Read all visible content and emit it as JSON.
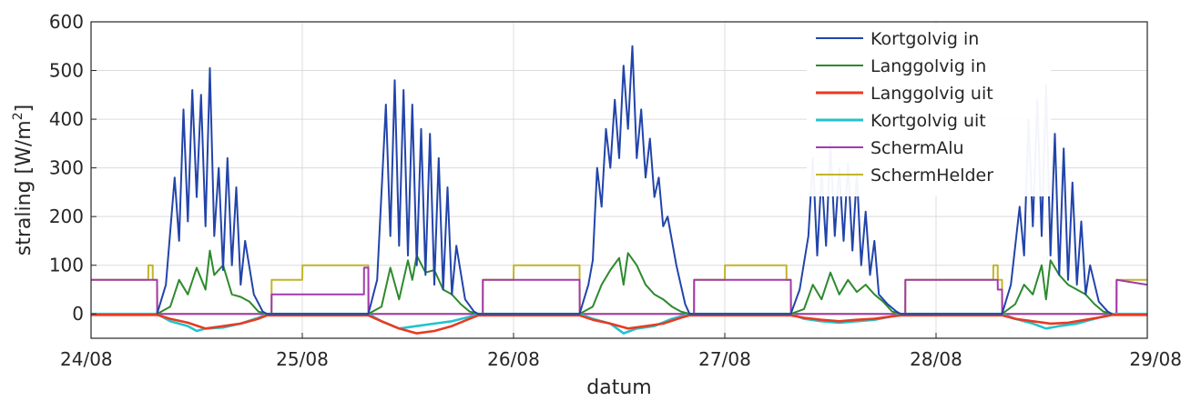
{
  "chart_data": {
    "type": "line",
    "xlabel": "datum",
    "ylabel_main": "straling [W/m",
    "ylabel_sup": "2",
    "ylabel_end": "]",
    "ylim": [
      -50,
      600
    ],
    "yticks": [
      0,
      100,
      200,
      300,
      400,
      500,
      600
    ],
    "xlim": [
      "24/08",
      "29/08"
    ],
    "xticks": [
      "24/08",
      "25/08",
      "26/08",
      "27/08",
      "28/08",
      "29/08"
    ],
    "grid": true,
    "legend_position": "top-right",
    "series": [
      {
        "name": "Kortgolvig in",
        "color": "#2244aa",
        "x": [
          "24/08 07:30",
          "24/08 08:30",
          "24/08 09:30",
          "24/08 10:00",
          "24/08 10:30",
          "24/08 11:00",
          "24/08 11:30",
          "24/08 12:00",
          "24/08 12:30",
          "24/08 13:00",
          "24/08 13:30",
          "24/08 14:00",
          "24/08 14:30",
          "24/08 15:00",
          "24/08 15:30",
          "24/08 16:00",
          "24/08 16:30",
          "24/08 17:00",
          "24/08 17:30",
          "24/08 18:30",
          "24/08 19:30",
          "24/08 20:00",
          "25/08 07:30",
          "25/08 08:30",
          "25/08 09:30",
          "25/08 10:00",
          "25/08 10:30",
          "25/08 11:00",
          "25/08 11:30",
          "25/08 12:00",
          "25/08 12:30",
          "25/08 13:00",
          "25/08 13:30",
          "25/08 14:00",
          "25/08 14:30",
          "25/08 15:00",
          "25/08 15:30",
          "25/08 16:00",
          "25/08 16:30",
          "25/08 17:00",
          "25/08 17:30",
          "25/08 18:30",
          "25/08 19:30",
          "25/08 20:00",
          "26/08 07:30",
          "26/08 08:30",
          "26/08 09:00",
          "26/08 09:30",
          "26/08 10:00",
          "26/08 10:30",
          "26/08 11:00",
          "26/08 11:30",
          "26/08 12:00",
          "26/08 12:30",
          "26/08 13:00",
          "26/08 13:30",
          "26/08 14:00",
          "26/08 14:30",
          "26/08 15:00",
          "26/08 15:30",
          "26/08 16:00",
          "26/08 16:30",
          "26/08 17:00",
          "26/08 17:30",
          "26/08 18:30",
          "26/08 19:30",
          "26/08 20:00",
          "27/08 07:30",
          "27/08 08:30",
          "27/08 09:30",
          "27/08 10:00",
          "27/08 10:30",
          "27/08 11:00",
          "27/08 11:30",
          "27/08 12:00",
          "27/08 12:30",
          "27/08 13:00",
          "27/08 13:30",
          "27/08 14:00",
          "27/08 14:30",
          "27/08 15:00",
          "27/08 15:30",
          "27/08 16:00",
          "27/08 16:30",
          "27/08 17:00",
          "27/08 17:30",
          "27/08 18:30",
          "27/08 19:30",
          "27/08 20:00",
          "28/08 07:30",
          "28/08 08:30",
          "28/08 09:30",
          "28/08 10:00",
          "28/08 10:30",
          "28/08 11:00",
          "28/08 11:30",
          "28/08 12:00",
          "28/08 12:30",
          "28/08 13:00",
          "28/08 13:30",
          "28/08 14:00",
          "28/08 14:30",
          "28/08 15:00",
          "28/08 15:30",
          "28/08 16:00",
          "28/08 16:30",
          "28/08 17:00",
          "28/08 17:30",
          "28/08 18:30",
          "28/08 19:30",
          "28/08 20:00"
        ],
        "values": [
          0,
          60,
          280,
          150,
          420,
          190,
          460,
          240,
          450,
          180,
          505,
          160,
          300,
          90,
          320,
          100,
          260,
          60,
          150,
          40,
          5,
          0,
          0,
          70,
          430,
          160,
          480,
          140,
          460,
          120,
          430,
          100,
          380,
          80,
          370,
          60,
          320,
          50,
          260,
          40,
          140,
          30,
          5,
          0,
          0,
          60,
          110,
          300,
          220,
          380,
          300,
          440,
          320,
          510,
          380,
          550,
          320,
          420,
          280,
          360,
          240,
          280,
          180,
          200,
          100,
          20,
          0,
          0,
          50,
          160,
          320,
          120,
          290,
          140,
          350,
          160,
          300,
          150,
          310,
          130,
          290,
          100,
          210,
          80,
          150,
          40,
          20,
          5,
          0,
          0,
          60,
          220,
          120,
          400,
          180,
          440,
          160,
          470,
          120,
          370,
          80,
          340,
          70,
          270,
          60,
          190,
          40,
          100,
          25,
          5,
          0
        ]
      },
      {
        "name": "Langgolvig in",
        "color": "#2d8a2d",
        "x": [
          "24/08 07:30",
          "24/08 09:00",
          "24/08 10:00",
          "24/08 11:00",
          "24/08 12:00",
          "24/08 13:00",
          "24/08 13:30",
          "24/08 14:00",
          "24/08 15:00",
          "24/08 16:00",
          "24/08 17:00",
          "24/08 18:00",
          "24/08 19:00",
          "24/08 20:00",
          "25/08 07:30",
          "25/08 09:00",
          "25/08 10:00",
          "25/08 11:00",
          "25/08 12:00",
          "25/08 12:30",
          "25/08 13:00",
          "25/08 14:00",
          "25/08 15:00",
          "25/08 16:00",
          "25/08 17:00",
          "25/08 18:00",
          "25/08 19:00",
          "25/08 20:00",
          "26/08 07:30",
          "26/08 09:00",
          "26/08 10:00",
          "26/08 11:00",
          "26/08 12:00",
          "26/08 12:30",
          "26/08 13:00",
          "26/08 14:00",
          "26/08 15:00",
          "26/08 16:00",
          "26/08 17:00",
          "26/08 18:00",
          "26/08 19:00",
          "26/08 20:00",
          "27/08 07:30",
          "27/08 09:00",
          "27/08 10:00",
          "27/08 11:00",
          "27/08 12:00",
          "27/08 13:00",
          "27/08 14:00",
          "27/08 15:00",
          "27/08 16:00",
          "27/08 17:00",
          "27/08 18:00",
          "27/08 19:00",
          "27/08 20:00",
          "28/08 07:30",
          "28/08 09:00",
          "28/08 10:00",
          "28/08 11:00",
          "28/08 12:00",
          "28/08 12:30",
          "28/08 13:00",
          "28/08 14:00",
          "28/08 15:00",
          "28/08 16:00",
          "28/08 17:00",
          "28/08 18:00",
          "28/08 19:00",
          "28/08 20:00"
        ],
        "values": [
          0,
          15,
          70,
          40,
          95,
          50,
          130,
          80,
          100,
          40,
          35,
          25,
          5,
          0,
          0,
          15,
          95,
          30,
          110,
          70,
          120,
          85,
          90,
          50,
          40,
          20,
          5,
          0,
          0,
          15,
          60,
          90,
          115,
          60,
          125,
          100,
          60,
          40,
          30,
          15,
          5,
          0,
          0,
          10,
          60,
          30,
          85,
          40,
          70,
          45,
          60,
          40,
          25,
          5,
          0,
          0,
          20,
          60,
          40,
          100,
          30,
          110,
          80,
          60,
          50,
          40,
          20,
          5,
          0
        ]
      },
      {
        "name": "Langgolvig uit",
        "color": "#e83a22",
        "x": [
          "24/08 00:00",
          "24/08 07:30",
          "24/08 09:00",
          "24/08 11:00",
          "24/08 13:00",
          "24/08 15:00",
          "24/08 17:00",
          "24/08 19:00",
          "24/08 20:00",
          "25/08 07:30",
          "25/08 09:00",
          "25/08 11:00",
          "25/08 13:00",
          "25/08 15:00",
          "25/08 17:00",
          "25/08 19:00",
          "25/08 20:00",
          "26/08 07:30",
          "26/08 09:00",
          "26/08 11:00",
          "26/08 13:00",
          "26/08 15:00",
          "26/08 17:00",
          "26/08 19:00",
          "26/08 20:00",
          "27/08 07:30",
          "27/08 09:00",
          "27/08 11:00",
          "27/08 13:00",
          "27/08 15:00",
          "27/08 17:00",
          "27/08 19:00",
          "27/08 20:00",
          "28/08 07:30",
          "28/08 09:00",
          "28/08 11:00",
          "28/08 13:00",
          "28/08 15:00",
          "28/08 17:00",
          "28/08 19:00",
          "28/08 20:00",
          "29/08 00:00"
        ],
        "values": [
          -2,
          -2,
          -10,
          -18,
          -30,
          -25,
          -20,
          -10,
          -3,
          -3,
          -15,
          -30,
          -40,
          -35,
          -25,
          -10,
          -3,
          -3,
          -12,
          -20,
          -30,
          -25,
          -20,
          -8,
          -3,
          -3,
          -8,
          -12,
          -15,
          -12,
          -10,
          -5,
          -3,
          -3,
          -10,
          -15,
          -20,
          -18,
          -12,
          -6,
          -2,
          -2
        ]
      },
      {
        "name": "Kortgolvig uit",
        "color": "#22c3cc",
        "x": [
          "24/08 00:00",
          "24/08 07:30",
          "24/08 09:00",
          "24/08 11:00",
          "24/08 12:00",
          "24/08 13:00",
          "24/08 15:00",
          "24/08 17:00",
          "24/08 19:00",
          "24/08 20:00",
          "25/08 07:30",
          "25/08 09:00",
          "25/08 11:00",
          "25/08 13:00",
          "25/08 15:00",
          "25/08 17:00",
          "25/08 19:00",
          "25/08 20:00",
          "26/08 07:30",
          "26/08 09:00",
          "26/08 11:00",
          "26/08 12:30",
          "26/08 14:00",
          "26/08 16:00",
          "26/08 18:00",
          "26/08 20:00",
          "27/08 07:30",
          "27/08 09:00",
          "27/08 11:00",
          "27/08 13:00",
          "27/08 15:00",
          "27/08 17:00",
          "27/08 19:00",
          "27/08 20:00",
          "28/08 07:30",
          "28/08 09:00",
          "28/08 11:00",
          "28/08 12:30",
          "28/08 14:00",
          "28/08 16:00",
          "28/08 18:00",
          "28/08 20:00",
          "29/08 00:00"
        ],
        "values": [
          0,
          0,
          -15,
          -25,
          -35,
          -30,
          -28,
          -20,
          -8,
          0,
          0,
          -15,
          -30,
          -25,
          -20,
          -15,
          -6,
          0,
          0,
          -10,
          -20,
          -40,
          -30,
          -25,
          -10,
          0,
          0,
          -10,
          -15,
          -18,
          -15,
          -12,
          -5,
          0,
          0,
          -10,
          -20,
          -30,
          -25,
          -20,
          -10,
          0,
          0
        ]
      },
      {
        "name": "SchermAlu",
        "color": "#a23aad",
        "x": [
          "24/08 00:00",
          "24/08 07:00",
          "24/08 07:01",
          "24/08 07:30",
          "24/08 07:31",
          "24/08 20:30",
          "24/08 20:31",
          "25/08 07:00",
          "25/08 07:01",
          "25/08 07:30",
          "25/08 07:31",
          "25/08 20:30",
          "25/08 20:31",
          "26/08 07:00",
          "26/08 07:01",
          "26/08 07:30",
          "26/08 07:31",
          "26/08 20:30",
          "26/08 20:31",
          "27/08 07:00",
          "27/08 07:01",
          "27/08 07:30",
          "27/08 07:31",
          "27/08 20:30",
          "27/08 20:31",
          "28/08 07:00",
          "28/08 07:01",
          "28/08 07:30",
          "28/08 07:31",
          "28/08 20:30",
          "28/08 20:31",
          "29/08 00:00"
        ],
        "values": [
          70,
          70,
          70,
          70,
          0,
          0,
          40,
          40,
          95,
          95,
          0,
          0,
          70,
          70,
          70,
          70,
          0,
          0,
          70,
          70,
          70,
          70,
          0,
          0,
          70,
          70,
          50,
          50,
          0,
          0,
          70,
          60
        ]
      },
      {
        "name": "SchermHelder",
        "color": "#c0b52a",
        "x": [
          "24/08 00:00",
          "24/08 06:30",
          "24/08 06:31",
          "24/08 07:00",
          "24/08 07:01",
          "24/08 07:30",
          "24/08 07:31",
          "24/08 20:30",
          "24/08 20:31",
          "25/08 00:00",
          "25/08 00:01",
          "25/08 07:00",
          "25/08 07:01",
          "25/08 07:30",
          "25/08 07:31",
          "25/08 20:30",
          "25/08 20:31",
          "26/08 00:00",
          "26/08 00:01",
          "26/08 07:00",
          "26/08 07:01",
          "26/08 07:30",
          "26/08 07:31",
          "26/08 20:30",
          "26/08 20:31",
          "27/08 00:00",
          "27/08 00:01",
          "27/08 07:00",
          "27/08 07:01",
          "27/08 07:30",
          "27/08 07:31",
          "27/08 20:30",
          "27/08 20:31",
          "28/08 06:30",
          "28/08 06:31",
          "28/08 07:00",
          "28/08 07:01",
          "28/08 07:30",
          "28/08 07:31",
          "28/08 20:30",
          "28/08 20:31",
          "29/08 00:00"
        ],
        "values": [
          70,
          70,
          100,
          100,
          70,
          70,
          0,
          0,
          70,
          70,
          100,
          100,
          100,
          100,
          0,
          0,
          70,
          70,
          100,
          100,
          100,
          100,
          0,
          0,
          70,
          70,
          100,
          100,
          70,
          70,
          0,
          0,
          70,
          70,
          100,
          100,
          70,
          70,
          0,
          0,
          70,
          70
        ]
      }
    ]
  }
}
